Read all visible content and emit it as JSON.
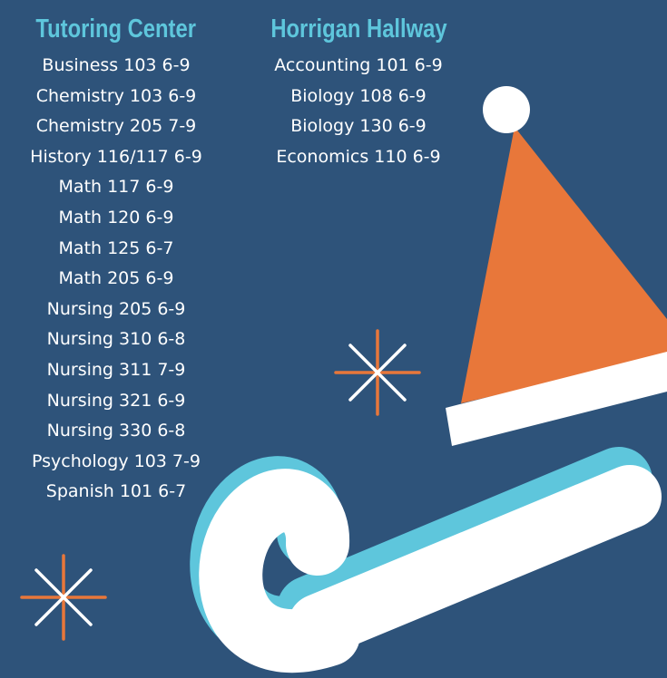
{
  "colors": {
    "background": "#2e537a",
    "heading": "#5ec6dc",
    "text": "#ffffff",
    "accent_orange": "#e8773a",
    "candy_shadow": "#5ec6dc"
  },
  "tutoring_center": {
    "title": "Tutoring Center",
    "items": [
      "Business 103 6-9",
      "Chemistry 103 6-9",
      "Chemistry 205 7-9",
      "History 116/117 6-9",
      "Math 117 6-9",
      "Math 120 6-9",
      "Math 125 6-7",
      "Math 205 6-9",
      "Nursing 205 6-9",
      "Nursing 310 6-8",
      "Nursing 311 7-9",
      "Nursing 321 6-9",
      "Nursing 330 6-8",
      "Psychology 103 7-9",
      "Spanish 101 6-7"
    ]
  },
  "horrigan_hallway": {
    "title": "Horrigan Hallway",
    "items": [
      "Accounting 101 6-9",
      "Biology 108 6-9",
      "Biology 130 6-9",
      "Economics 110 6-9"
    ]
  },
  "decorations": [
    "santa-hat-icon",
    "snowflake-icon",
    "candy-cane-icon"
  ]
}
